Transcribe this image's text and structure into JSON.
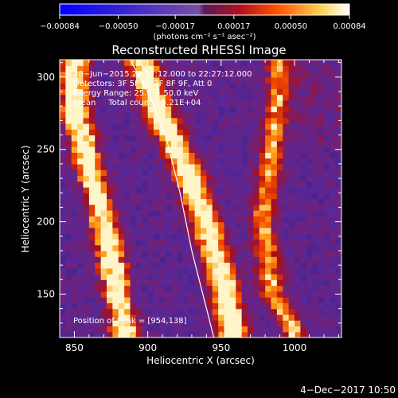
{
  "chart_data": {
    "type": "heatmap",
    "title": "Reconstructed RHESSI Image",
    "xlabel": "Heliocentric X (arcsec)",
    "ylabel": "Heliocentric Y (arcsec)",
    "xlim": [
      840,
      1032
    ],
    "ylim": [
      120,
      312
    ],
    "x_ticks": [
      "850",
      "900",
      "950",
      "1000"
    ],
    "x_tick_values": [
      850,
      900,
      950,
      1000
    ],
    "y_ticks": [
      "150",
      "200",
      "250",
      "300"
    ],
    "y_tick_values": [
      150,
      200,
      250,
      300
    ],
    "colorbar": {
      "ticks": [
        "−0.00084",
        "−0.00050",
        "−0.00017",
        "0.00017",
        "0.00050",
        "0.00084"
      ],
      "tick_values": [
        -0.00084,
        -0.0005,
        -0.00017,
        0.00017,
        0.0005,
        0.00084
      ],
      "range": [
        -0.00084,
        0.00084
      ],
      "units": "(photons cm⁻² s⁻¹ asec⁻²)"
    },
    "info": [
      "28−Jun−2015 22:17:12.000 to 22:27:12.000",
      "Detectors: 3F 5F 6F 7F 8F 9F, Att 0",
      "Energy Range: 25.0 − 50.0 keV",
      "Clean     Total counts: 5.21E+04"
    ],
    "peak_text": "Position of Peak = [954,138]",
    "peak": [
      954,
      138
    ],
    "limb_curve": [
      [
        888,
        312
      ],
      [
        900,
        290
      ],
      [
        912,
        260
      ],
      [
        922,
        220
      ],
      [
        930,
        180
      ],
      [
        940,
        140
      ],
      [
        945,
        120
      ]
    ],
    "bright_bands": [
      {
        "name": "left band",
        "points": [
          [
            850,
            280
          ],
          [
            860,
            240
          ],
          [
            870,
            200
          ],
          [
            878,
            160
          ],
          [
            884,
            125
          ]
        ]
      },
      {
        "name": "limb band",
        "points": [
          [
            895,
            312
          ],
          [
            910,
            270
          ],
          [
            925,
            240
          ],
          [
            940,
            200
          ],
          [
            950,
            165
          ],
          [
            958,
            125
          ]
        ]
      },
      {
        "name": "right band",
        "points": [
          [
            990,
            300
          ],
          [
            985,
            250
          ],
          [
            978,
            200
          ],
          [
            985,
            150
          ],
          [
            1000,
            125
          ]
        ]
      }
    ]
  },
  "footer": {
    "date": "4−Dec−2017 10:50"
  },
  "colors": {
    "background": "#000000",
    "axis": "#ffffff",
    "limb": "#ffffff"
  }
}
